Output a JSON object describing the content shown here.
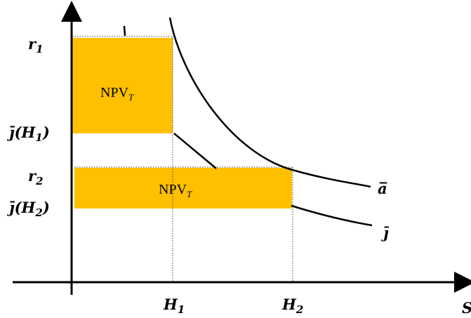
{
  "colors": {
    "rect_fill": "#FFC000",
    "line": "#000000",
    "guide": "#444444"
  },
  "y_labels": {
    "r1": {
      "base": "r",
      "sub": "1"
    },
    "jH1": {
      "pre": "j̄(",
      "base": "H",
      "sub": "1",
      "post": ")"
    },
    "r2": {
      "base": "r",
      "sub": "2"
    },
    "jH2": {
      "pre": "j̄(",
      "base": "H",
      "sub": "2",
      "post": ")"
    }
  },
  "x_labels": {
    "H1": {
      "base": "H",
      "sub": "1"
    },
    "H2": {
      "base": "H",
      "sub": "2"
    },
    "axis": "S"
  },
  "curve_labels": {
    "a_bar": "a̅",
    "j_bar": "j̄"
  },
  "boxes": {
    "top": {
      "text": "NPV",
      "sub": "T"
    },
    "bottom": {
      "text": "NPV",
      "sub": "T"
    }
  }
}
